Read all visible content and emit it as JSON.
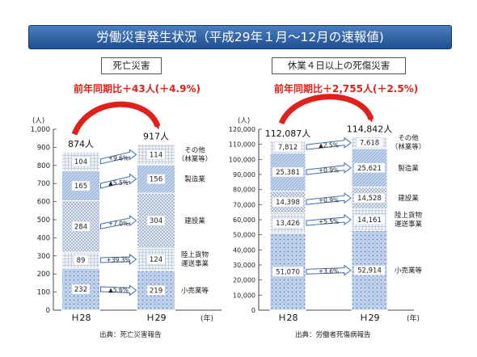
{
  "title": "労働災害発生状況（平成29年１月～12月の速報値)",
  "colors": {
    "accent": "#e0201b",
    "title_bg": "#2c5fa3",
    "segment_dark": "#6f9bd0",
    "segment_light": "#dbe6f3"
  },
  "chart_data": [
    {
      "type": "bar",
      "stacked": true,
      "title": "死亡災害",
      "change_label": "前年同期比＋43人(＋4.9%)",
      "ylabel": "(人)",
      "xlabel": "(年)",
      "ylim": [
        0,
        1000
      ],
      "yticks": [
        0,
        100,
        200,
        300,
        400,
        500,
        600,
        700,
        800,
        900,
        1000
      ],
      "ytick_labels": [
        "0",
        "100",
        "200",
        "300",
        "400",
        "500",
        "600",
        "700",
        "800",
        "900",
        "1,000"
      ],
      "categories": [
        "Ｈ28",
        "Ｈ29"
      ],
      "totals": [
        874,
        917
      ],
      "total_labels": [
        "874人",
        "917人"
      ],
      "series": [
        {
          "name": "小売業等",
          "values": [
            232,
            219
          ],
          "labels": [
            "232",
            "219"
          ],
          "change": "▲5.6%"
        },
        {
          "name": "陸上貨物運送事業",
          "values": [
            89,
            124
          ],
          "labels": [
            "89",
            "124"
          ],
          "change": "+39.3%"
        },
        {
          "name": "建設業",
          "values": [
            284,
            304
          ],
          "labels": [
            "284",
            "304"
          ],
          "change": "+7.0%"
        },
        {
          "name": "製造業",
          "values": [
            165,
            156
          ],
          "labels": [
            "165",
            "156"
          ],
          "change": "▲5.5%"
        },
        {
          "name": "その他（林業等）",
          "values": [
            104,
            114
          ],
          "labels": [
            "104",
            "114"
          ],
          "change": "+9.6%"
        }
      ],
      "source": "出典：死亡災害報告"
    },
    {
      "type": "bar",
      "stacked": true,
      "title": "休業４日以上の死傷災害",
      "change_label": "前年同期比＋2,755人(＋2.5%)",
      "ylabel": "(人)",
      "xlabel": "(年)",
      "ylim": [
        0,
        120000
      ],
      "yticks": [
        0,
        10000,
        20000,
        30000,
        40000,
        50000,
        60000,
        70000,
        80000,
        90000,
        100000,
        110000,
        120000
      ],
      "ytick_labels": [
        "0",
        "10,000",
        "20,000",
        "30,000",
        "40,000",
        "50,000",
        "60,000",
        "70,000",
        "80,000",
        "90,000",
        "100,000",
        "110,000",
        "120,000"
      ],
      "categories": [
        "Ｈ28",
        "Ｈ29"
      ],
      "totals": [
        112087,
        114842
      ],
      "total_labels": [
        "112,087人",
        "114,842人"
      ],
      "series": [
        {
          "name": "小売業等",
          "values": [
            51070,
            52914
          ],
          "labels": [
            "51,070",
            "52,914"
          ],
          "change": "+3.6%"
        },
        {
          "name": "陸上貨物運送事業",
          "values": [
            13426,
            14161
          ],
          "labels": [
            "13,426",
            "14,161"
          ],
          "change": "+5.5%"
        },
        {
          "name": "建設業",
          "values": [
            14398,
            14528
          ],
          "labels": [
            "14,398",
            "14,528"
          ],
          "change": "+0.9%"
        },
        {
          "name": "製造業",
          "values": [
            25381,
            25621
          ],
          "labels": [
            "25,381",
            "25,621"
          ],
          "change": "+0.9%"
        },
        {
          "name": "その他（林業等）",
          "values": [
            7812,
            7618
          ],
          "labels": [
            "7,812",
            "7,618"
          ],
          "change": "▲2.5%"
        }
      ],
      "source": "出典：労働者死傷病報告"
    }
  ]
}
